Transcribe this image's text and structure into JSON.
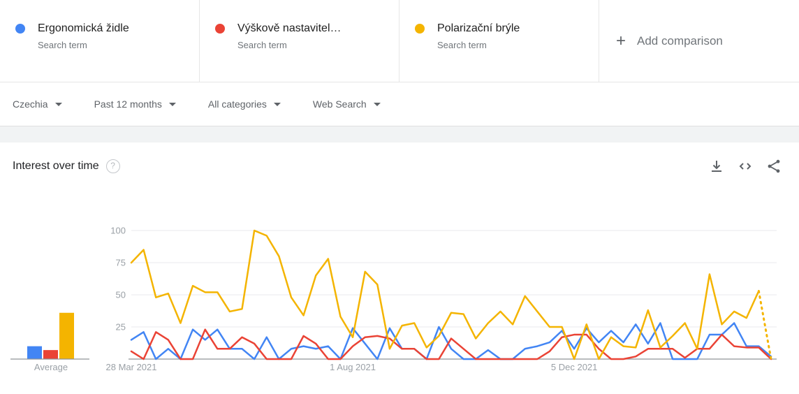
{
  "legend_cards": {
    "terms": [
      {
        "label": "Ergonomická židle",
        "type": "Search term",
        "color": "#4285f4"
      },
      {
        "label": "Výškově nastavitel…",
        "type": "Search term",
        "color": "#ea4335"
      },
      {
        "label": "Polarizační brýle",
        "type": "Search term",
        "color": "#f4b400"
      }
    ],
    "plus_sign": "+",
    "add_comparison_label": "Add comparison"
  },
  "filters": {
    "items": [
      {
        "label": "Czechia"
      },
      {
        "label": "Past 12 months"
      },
      {
        "label": "All categories"
      },
      {
        "label": "Web Search"
      }
    ]
  },
  "section": {
    "title": "Interest over time",
    "help_icon": "question-mark-circle-icon",
    "action_icons": [
      "download-icon",
      "embed-code-icon",
      "share-icon"
    ]
  },
  "average_chart": {
    "label": "Average",
    "values": [
      {
        "name": "Ergonomická židle",
        "value": 10
      },
      {
        "name": "Výškově nastavitel…",
        "value": 7
      },
      {
        "name": "Polarizační brýle",
        "value": 36
      }
    ]
  },
  "chart_data": {
    "type": "line",
    "title": "Interest over time",
    "ylim": [
      0,
      100
    ],
    "y_ticks": [
      25,
      50,
      75,
      100
    ],
    "grid": "horizontal",
    "legend_position": "top-cards",
    "x_tick_labels": [
      "28 Mar 2021",
      "1 Aug 2021",
      "5 Dec 2021"
    ],
    "x_tick_indices": [
      0,
      18,
      36
    ],
    "num_points": 53,
    "series": [
      {
        "name": "Ergonomická židle",
        "color": "#4285f4",
        "dashed_last_segment": false,
        "values": [
          15,
          21,
          0,
          8,
          0,
          23,
          15,
          23,
          8,
          8,
          0,
          17,
          0,
          8,
          10,
          8,
          10,
          0,
          24,
          12,
          0,
          24,
          8,
          8,
          0,
          25,
          8,
          0,
          0,
          7,
          0,
          0,
          8,
          10,
          13,
          22,
          8,
          24,
          13,
          22,
          13,
          27,
          12,
          28,
          0,
          0,
          0,
          19,
          19,
          28,
          10,
          10,
          2
        ]
      },
      {
        "name": "Výškově nastavitel…",
        "color": "#ea4335",
        "dashed_last_segment": false,
        "values": [
          6,
          0,
          21,
          15,
          0,
          0,
          23,
          8,
          8,
          17,
          12,
          0,
          0,
          0,
          18,
          12,
          0,
          0,
          10,
          17,
          18,
          16,
          8,
          8,
          0,
          0,
          16,
          8,
          0,
          0,
          0,
          0,
          0,
          0,
          6,
          17,
          19,
          19,
          8,
          0,
          0,
          2,
          8,
          8,
          8,
          1,
          8,
          8,
          19,
          10,
          9,
          9,
          0
        ]
      },
      {
        "name": "Polarizační brýle",
        "color": "#f4b400",
        "dashed_last_segment": true,
        "values": [
          75,
          85,
          48,
          51,
          28,
          57,
          52,
          52,
          37,
          39,
          100,
          96,
          80,
          48,
          34,
          65,
          78,
          33,
          17,
          68,
          58,
          8,
          26,
          28,
          9,
          18,
          36,
          35,
          16,
          28,
          37,
          27,
          49,
          37,
          25,
          25,
          0,
          27,
          0,
          17,
          10,
          9,
          38,
          9,
          18,
          28,
          8,
          66,
          27,
          37,
          32,
          53,
          0
        ]
      }
    ]
  }
}
